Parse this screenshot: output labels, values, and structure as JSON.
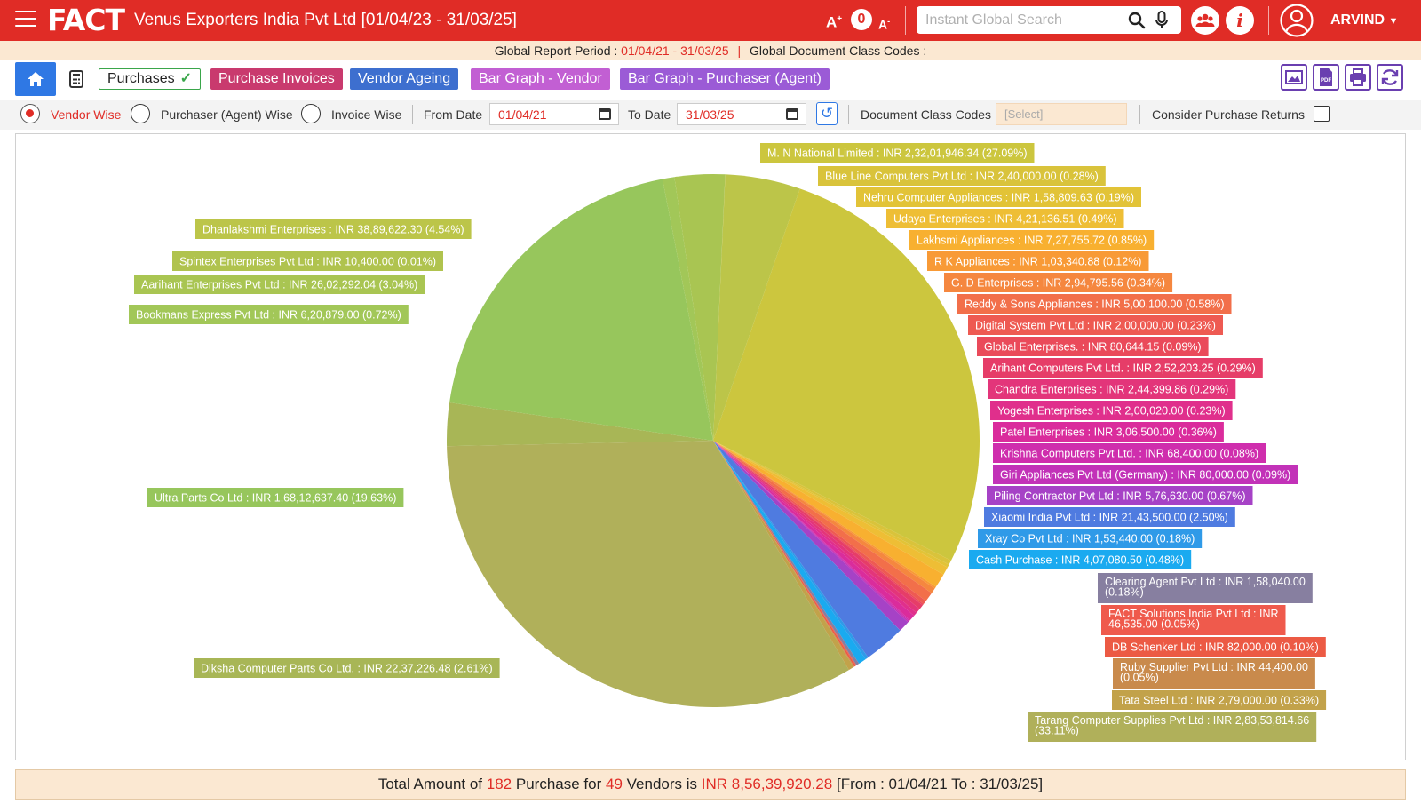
{
  "header": {
    "logo": "FACT",
    "company_title": "Venus Exporters India Pvt Ltd [01/04/23 - 31/03/25]",
    "font_increase": "A",
    "font_level": "0",
    "font_decrease": "A",
    "search_placeholder": "Instant Global Search",
    "info_glyph": "i",
    "user": "ARVIND"
  },
  "period_bar": {
    "period_label": "Global Report Period :",
    "period_value": "01/04/21 - 31/03/25",
    "pipe": "|",
    "class_codes_label": "Global Document Class Codes :"
  },
  "tabs": [
    {
      "label": "Purchases",
      "color": "#ffffff",
      "active": true
    },
    {
      "label": "Purchase Invoices",
      "color": "#c93a6e"
    },
    {
      "label": "Vendor Ageing",
      "color": "#3d6fcf"
    },
    {
      "label": "Bar Graph - Vendor",
      "color": "#c25fd3"
    },
    {
      "label": "Bar Graph - Purchaser (Agent)",
      "color": "#9b5bd6"
    }
  ],
  "filters": {
    "vendor_wise": "Vendor Wise",
    "purchaser_wise": "Purchaser (Agent) Wise",
    "invoice_wise": "Invoice Wise",
    "from_date_label": "From Date",
    "from_date": "01/04/21",
    "to_date_label": "To Date",
    "to_date": "31/03/25",
    "doc_class_label": "Document Class Codes",
    "doc_class_placeholder": "[Select]",
    "consider_returns_label": "Consider Purchase Returns"
  },
  "chart_data": {
    "type": "pie",
    "slices": [
      {
        "label": "M. N  National Limited : INR 2,32,01,946.34 (27.09%)",
        "value": 27.09,
        "color": "#ccc63e"
      },
      {
        "label": "Blue Line Computers Pvt Ltd : INR 2,40,000.00 (0.28%)",
        "value": 0.28,
        "color": "#d9c33b"
      },
      {
        "label": "Nehru Computer Appliances : INR 1,58,809.63 (0.19%)",
        "value": 0.19,
        "color": "#e2c337"
      },
      {
        "label": "Udaya Enterprises : INR 4,21,136.51 (0.49%)",
        "value": 0.49,
        "color": "#eebe35"
      },
      {
        "label": "Lakhsmi Appliances : INR 7,27,755.72 (0.85%)",
        "value": 0.85,
        "color": "#f8b030"
      },
      {
        "label": "R K Appliances : INR 1,03,340.88 (0.12%)",
        "value": 0.12,
        "color": "#f89a36"
      },
      {
        "label": "G. D Enterprises : INR 2,94,795.56 (0.34%)",
        "value": 0.34,
        "color": "#f5873f"
      },
      {
        "label": "Reddy & Sons Appliances : INR 5,00,100.00 (0.58%)",
        "value": 0.58,
        "color": "#f26f4a"
      },
      {
        "label": "Digital System Pvt Ltd : INR 2,00,000.00 (0.23%)",
        "value": 0.23,
        "color": "#ee5a52"
      },
      {
        "label": "Global Enterprises. : INR 80,644.15 (0.09%)",
        "value": 0.09,
        "color": "#ea4a5a"
      },
      {
        "label": "Arihant  Computers Pvt Ltd. : INR 2,52,203.25 (0.29%)",
        "value": 0.29,
        "color": "#e63d68"
      },
      {
        "label": "Chandra Enterprises : INR 2,44,399.86 (0.29%)",
        "value": 0.29,
        "color": "#e3357a"
      },
      {
        "label": "Yogesh Enterprises : INR 2,00,020.00 (0.23%)",
        "value": 0.23,
        "color": "#e02f8c"
      },
      {
        "label": "Patel Enterprises : INR 3,06,500.00 (0.36%)",
        "value": 0.36,
        "color": "#da2c9c"
      },
      {
        "label": "Krishna Computers Pvt Ltd. : INR 68,400.00 (0.08%)",
        "value": 0.08,
        "color": "#cf2ead"
      },
      {
        "label": "Giri Appliances Pvt Ltd (Germany) : INR 80,000.00 (0.09%)",
        "value": 0.09,
        "color": "#c232b8"
      },
      {
        "label": "Piling Contractor Pvt Ltd : INR 5,76,630.00 (0.67%)",
        "value": 0.67,
        "color": "#a642c6"
      },
      {
        "label": "Xiaomi India Pvt Ltd : INR 21,43,500.00 (2.50%)",
        "value": 2.5,
        "color": "#4f7be0"
      },
      {
        "label": "Xray Co Pvt Ltd : INR 1,53,440.00 (0.18%)",
        "value": 0.18,
        "color": "#2f9ae8"
      },
      {
        "label": "Cash Purchase : INR 4,07,080.50 (0.48%)",
        "value": 0.48,
        "color": "#1aaaf0"
      },
      {
        "label": "Clearing Agent Pvt Ltd : INR 1,58,040.00 (0.18%)",
        "value": 0.18,
        "color": "#877fa0"
      },
      {
        "label": "FACT Solutions India Pvt Ltd : INR 46,535.00 (0.05%)",
        "value": 0.05,
        "color": "#ef5a4c"
      },
      {
        "label": "DB Schenker Ltd : INR 82,000.00 (0.10%)",
        "value": 0.1,
        "color": "#ec5a44"
      },
      {
        "label": "Ruby Supplier Pvt Ltd : INR 44,400.00 (0.05%)",
        "value": 0.05,
        "color": "#c98a4c"
      },
      {
        "label": "Tata Steel Ltd : INR 2,79,000.00 (0.33%)",
        "value": 0.33,
        "color": "#c2a24a"
      },
      {
        "label": "Tarang Computer Supplies Pvt Ltd : INR 2,83,53,814.66 (33.11%)",
        "value": 33.11,
        "color": "#b0b05a"
      },
      {
        "label": "Diksha Computer Parts Co Ltd. : INR 22,37,226.48 (2.61%)",
        "value": 2.61,
        "color": "#a8b656"
      },
      {
        "label": "Ultra Parts Co Ltd : INR 1,68,12,637.40 (19.63%)",
        "value": 19.63,
        "color": "#97c65c"
      },
      {
        "label": "Bookmans  Express Pvt Ltd : INR 6,20,879.00 (0.72%)",
        "value": 0.72,
        "color": "#a2c758"
      },
      {
        "label": "Aarihant Enterprises Pvt Ltd : INR 26,02,292.04 (3.04%)",
        "value": 3.04,
        "color": "#a9c552"
      },
      {
        "label": "Spintex Enterprises Pvt Ltd : INR 10,400.00 (0.01%)",
        "value": 0.01,
        "color": "#b0c34e"
      },
      {
        "label": "Dhanlakshmi Enterprises : INR 38,89,622.30 (4.54%)",
        "value": 4.54,
        "color": "#bcc549"
      }
    ]
  },
  "summary": {
    "t1": "Total Amount of",
    "count": "182",
    "t2": "Purchase for",
    "vendors": "49",
    "t3": "Vendors is",
    "amount": "INR 8,56,39,920.28",
    "t4": "[From : 01/04/21 To : 31/03/25]"
  }
}
